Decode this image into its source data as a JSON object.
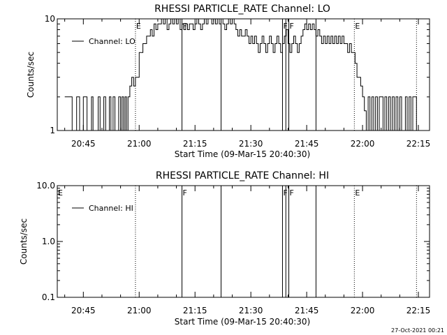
{
  "chart_data": [
    {
      "type": "line",
      "title": "RHESSI PARTICLE_RATE Channel: LO",
      "xlabel": "Start Time (09-Mar-15 20:40:30)",
      "ylabel": "Counts/sec",
      "yscale": "log",
      "ylim": [
        1,
        10
      ],
      "xlim_minutes": [
        38,
        138
      ],
      "y_ticks": [
        {
          "v": 1,
          "label": "1"
        },
        {
          "v": 10,
          "label": "10"
        }
      ],
      "x_ticks": [
        {
          "m": 45,
          "label": "20:45"
        },
        {
          "m": 60,
          "label": "21:00"
        },
        {
          "m": 75,
          "label": "21:15"
        },
        {
          "m": 90,
          "label": "21:30"
        },
        {
          "m": 105,
          "label": "21:45"
        },
        {
          "m": 120,
          "label": "22:00"
        },
        {
          "m": 135,
          "label": "22:15"
        }
      ],
      "legend": {
        "label": "Channel: LO",
        "position": "top-left"
      },
      "events": [
        {
          "m": 59,
          "label": "E",
          "style": "dotted"
        },
        {
          "m": 71.5,
          "label": "F",
          "style": "solid"
        },
        {
          "m": 82,
          "label": "",
          "style": "solid"
        },
        {
          "m": 98.5,
          "label": "F",
          "style": "solid"
        },
        {
          "m": 99.4,
          "label": "",
          "style": "solid"
        },
        {
          "m": 100.2,
          "label": "F",
          "style": "solid"
        },
        {
          "m": 107.5,
          "label": "",
          "style": "solid"
        },
        {
          "m": 117.8,
          "label": "E",
          "style": "dotted"
        },
        {
          "m": 134.5,
          "label": "",
          "style": "dotted"
        }
      ],
      "series": [
        {
          "name": "Channel: LO",
          "points": [
            [
              40,
              2
            ],
            [
              41,
              2
            ],
            [
              42,
              1
            ],
            [
              42.7,
              1
            ],
            [
              43.2,
              2
            ],
            [
              43.6,
              2
            ],
            [
              44,
              1
            ],
            [
              44.6,
              1
            ],
            [
              45,
              2
            ],
            [
              45.6,
              2
            ],
            [
              46,
              1
            ],
            [
              46.8,
              1
            ],
            [
              47.2,
              2
            ],
            [
              47.6,
              1
            ],
            [
              48.5,
              1
            ],
            [
              49,
              2
            ],
            [
              49.5,
              1
            ],
            [
              50,
              1
            ],
            [
              50.5,
              2
            ],
            [
              51,
              1
            ],
            [
              51.6,
              1
            ],
            [
              52,
              2
            ],
            [
              52.4,
              1
            ],
            [
              53,
              2
            ],
            [
              53.5,
              1
            ],
            [
              54,
              1
            ],
            [
              54.5,
              2
            ],
            [
              55,
              1
            ],
            [
              55.4,
              2
            ],
            [
              55.8,
              1
            ],
            [
              56.2,
              2
            ],
            [
              56.6,
              1
            ],
            [
              57,
              2
            ],
            [
              57.5,
              2.5
            ],
            [
              58,
              3
            ],
            [
              58.5,
              2.5
            ],
            [
              59,
              3
            ],
            [
              59.5,
              3
            ],
            [
              60,
              5
            ],
            [
              60.5,
              5
            ],
            [
              61,
              6
            ],
            [
              61.5,
              6
            ],
            [
              62,
              7
            ],
            [
              62.5,
              7
            ],
            [
              63,
              8
            ],
            [
              63.5,
              7
            ],
            [
              64,
              9
            ],
            [
              64.5,
              8
            ],
            [
              65,
              9
            ],
            [
              65.5,
              9
            ],
            [
              66,
              10
            ],
            [
              66.5,
              9
            ],
            [
              67,
              10
            ],
            [
              67.5,
              8
            ],
            [
              68,
              9
            ],
            [
              68.5,
              10
            ],
            [
              69,
              9
            ],
            [
              69.5,
              10
            ],
            [
              70,
              9
            ],
            [
              70.5,
              10
            ],
            [
              71,
              8
            ],
            [
              71.5,
              9
            ],
            [
              72,
              8
            ],
            [
              72.5,
              9
            ],
            [
              73,
              8
            ],
            [
              73.5,
              9
            ],
            [
              74,
              9
            ],
            [
              74.5,
              8
            ],
            [
              75,
              9
            ],
            [
              75.5,
              10
            ],
            [
              76,
              9
            ],
            [
              76.5,
              8
            ],
            [
              77,
              9
            ],
            [
              77.5,
              10
            ],
            [
              78,
              9
            ],
            [
              78.5,
              10
            ],
            [
              79,
              10
            ],
            [
              79.5,
              9
            ],
            [
              80,
              10
            ],
            [
              80.5,
              9
            ],
            [
              81,
              10
            ],
            [
              81.5,
              9
            ],
            [
              82,
              10
            ],
            [
              82.5,
              9
            ],
            [
              83,
              8
            ],
            [
              83.5,
              9
            ],
            [
              84,
              10
            ],
            [
              84.5,
              9
            ],
            [
              85,
              10
            ],
            [
              85.5,
              9
            ],
            [
              86,
              8
            ],
            [
              86.5,
              7
            ],
            [
              87,
              8
            ],
            [
              87.5,
              7
            ],
            [
              88,
              7
            ],
            [
              88.5,
              8
            ],
            [
              89,
              7
            ],
            [
              89.5,
              6
            ],
            [
              90,
              7
            ],
            [
              90.5,
              6
            ],
            [
              91,
              7
            ],
            [
              91.5,
              6
            ],
            [
              92,
              5
            ],
            [
              92.5,
              6
            ],
            [
              93,
              7
            ],
            [
              93.5,
              6
            ],
            [
              94,
              5
            ],
            [
              94.5,
              6
            ],
            [
              95,
              7
            ],
            [
              95.5,
              6
            ],
            [
              96,
              5
            ],
            [
              96.5,
              6
            ],
            [
              97,
              7
            ],
            [
              97.5,
              6
            ],
            [
              98,
              5
            ],
            [
              98.5,
              6
            ],
            [
              99,
              7
            ],
            [
              99.5,
              8
            ],
            [
              100,
              6
            ],
            [
              100.5,
              5
            ],
            [
              101,
              6
            ],
            [
              101.5,
              7
            ],
            [
              102,
              6
            ],
            [
              102.5,
              5
            ],
            [
              103,
              6
            ],
            [
              103.5,
              7
            ],
            [
              104,
              8
            ],
            [
              104.5,
              9
            ],
            [
              105,
              8
            ],
            [
              105.5,
              9
            ],
            [
              106,
              8
            ],
            [
              106.5,
              9
            ],
            [
              107,
              8
            ],
            [
              107.5,
              7
            ],
            [
              108,
              8
            ],
            [
              108.5,
              7
            ],
            [
              109,
              6
            ],
            [
              109.5,
              7
            ],
            [
              110,
              6
            ],
            [
              110.5,
              7
            ],
            [
              111,
              6
            ],
            [
              111.5,
              7
            ],
            [
              112,
              6
            ],
            [
              112.5,
              7
            ],
            [
              113,
              6
            ],
            [
              113.5,
              7
            ],
            [
              114,
              6
            ],
            [
              114.5,
              7
            ],
            [
              115,
              6
            ],
            [
              115.5,
              6
            ],
            [
              116,
              5
            ],
            [
              116.5,
              6
            ],
            [
              117,
              5
            ],
            [
              117.5,
              5
            ],
            [
              118,
              4
            ],
            [
              118.5,
              3
            ],
            [
              119,
              3
            ],
            [
              119.5,
              2.5
            ],
            [
              120,
              2
            ],
            [
              120.5,
              1.5
            ],
            [
              121,
              1
            ],
            [
              121.5,
              2
            ],
            [
              122,
              1
            ],
            [
              122.5,
              2
            ],
            [
              123,
              1
            ],
            [
              123.5,
              2
            ],
            [
              124,
              1
            ],
            [
              124.5,
              2
            ],
            [
              125,
              2
            ],
            [
              125.5,
              1
            ],
            [
              126,
              2
            ],
            [
              126.5,
              1
            ],
            [
              127,
              2
            ],
            [
              127.5,
              1
            ],
            [
              128,
              2
            ],
            [
              128.5,
              1
            ],
            [
              129,
              2
            ],
            [
              129.5,
              1
            ],
            [
              130,
              2
            ],
            [
              130.5,
              1
            ],
            [
              131,
              1
            ],
            [
              131.5,
              2
            ],
            [
              132,
              1
            ],
            [
              132.5,
              2
            ],
            [
              133,
              1
            ],
            [
              133.5,
              2
            ],
            [
              134,
              2
            ],
            [
              134.5,
              1
            ],
            [
              135,
              1
            ]
          ]
        }
      ]
    },
    {
      "type": "line",
      "title": "RHESSI PARTICLE_RATE Channel: HI",
      "xlabel": "Start Time (09-Mar-15 20:40:30)",
      "ylabel": "Counts/sec",
      "yscale": "log",
      "ylim": [
        0.1,
        10
      ],
      "xlim_minutes": [
        38,
        138
      ],
      "y_ticks": [
        {
          "v": 0.1,
          "label": "0.1"
        },
        {
          "v": 1,
          "label": "1.0"
        },
        {
          "v": 10,
          "label": "10.0"
        }
      ],
      "x_ticks": [
        {
          "m": 45,
          "label": "20:45"
        },
        {
          "m": 60,
          "label": "21:00"
        },
        {
          "m": 75,
          "label": "21:15"
        },
        {
          "m": 90,
          "label": "21:30"
        },
        {
          "m": 105,
          "label": "21:45"
        },
        {
          "m": 120,
          "label": "22:00"
        },
        {
          "m": 135,
          "label": "22:15"
        }
      ],
      "legend": {
        "label": "Channel: HI",
        "position": "top-left"
      },
      "events": [
        {
          "m": 38,
          "label": "E",
          "style": "none"
        },
        {
          "m": 59,
          "label": "",
          "style": "dotted"
        },
        {
          "m": 71.5,
          "label": "F",
          "style": "solid"
        },
        {
          "m": 82,
          "label": "",
          "style": "solid"
        },
        {
          "m": 98.5,
          "label": "F",
          "style": "solid"
        },
        {
          "m": 99.4,
          "label": "",
          "style": "solid"
        },
        {
          "m": 100.2,
          "label": "F",
          "style": "solid"
        },
        {
          "m": 107.5,
          "label": "",
          "style": "solid"
        },
        {
          "m": 117.8,
          "label": "E",
          "style": "dotted"
        },
        {
          "m": 134.5,
          "label": "",
          "style": "dotted"
        }
      ],
      "series": [
        {
          "name": "Channel: HI",
          "points": []
        }
      ]
    }
  ],
  "footer": {
    "timestamp": "27-Oct-2021 00:21"
  }
}
